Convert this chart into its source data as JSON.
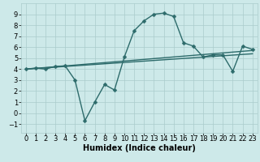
{
  "xlabel": "Humidex (Indice chaleur)",
  "ylabel": "",
  "bg_color": "#cde9e9",
  "grid_color": "#aacccc",
  "line_color": "#2d6b6b",
  "xlim": [
    -0.5,
    23.5
  ],
  "ylim": [
    -1.8,
    10.0
  ],
  "xticks": [
    0,
    1,
    2,
    3,
    4,
    5,
    6,
    7,
    8,
    9,
    10,
    11,
    12,
    13,
    14,
    15,
    16,
    17,
    18,
    19,
    20,
    21,
    22,
    23
  ],
  "yticks": [
    -1,
    0,
    1,
    2,
    3,
    4,
    5,
    6,
    7,
    8,
    9
  ],
  "main_x": [
    0,
    1,
    2,
    3,
    4,
    5,
    6,
    7,
    8,
    9,
    10,
    11,
    12,
    13,
    14,
    15,
    16,
    17,
    18,
    19,
    20,
    21,
    22,
    23
  ],
  "main_y": [
    4.0,
    4.1,
    4.0,
    4.25,
    4.3,
    3.0,
    -0.7,
    1.0,
    2.6,
    2.1,
    5.1,
    7.5,
    8.4,
    9.0,
    9.1,
    8.8,
    6.4,
    6.1,
    5.1,
    5.3,
    5.3,
    3.8,
    6.1,
    5.8
  ],
  "trend1_x": [
    0,
    23
  ],
  "trend1_y": [
    4.0,
    5.7
  ],
  "trend2_x": [
    0,
    23
  ],
  "trend2_y": [
    4.0,
    5.4
  ],
  "marker_size": 2.5,
  "line_width": 1.0,
  "font_size_label": 7,
  "font_size_tick": 6
}
